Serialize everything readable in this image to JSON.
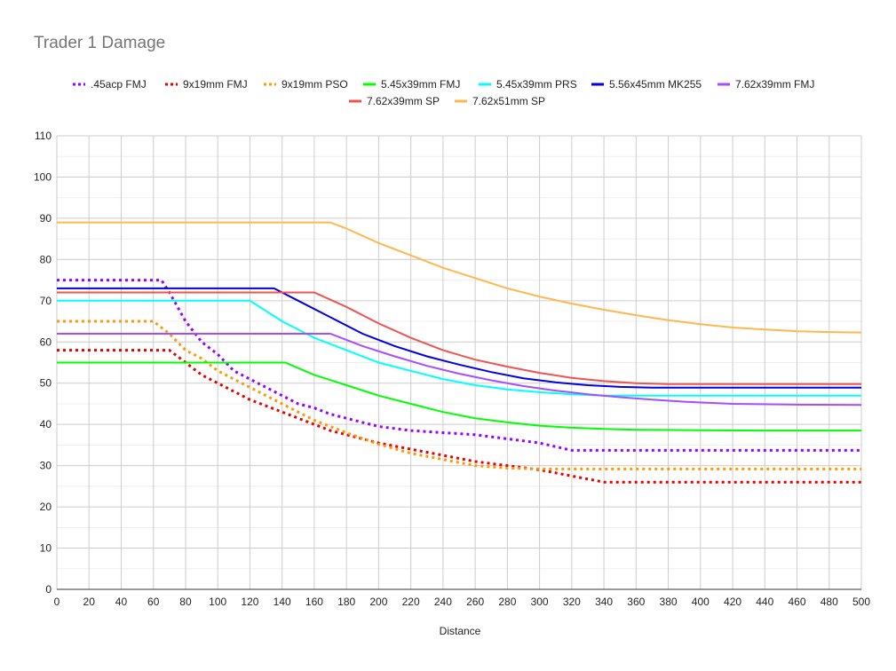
{
  "chart_data": {
    "type": "line",
    "title": "Trader 1 Damage",
    "xlabel": "Distance",
    "ylabel": "",
    "xlim": [
      0,
      500
    ],
    "ylim": [
      0,
      110
    ],
    "xticks": [
      0,
      20,
      40,
      60,
      80,
      100,
      120,
      140,
      160,
      180,
      200,
      220,
      240,
      260,
      280,
      300,
      320,
      340,
      360,
      380,
      400,
      420,
      440,
      460,
      480,
      500
    ],
    "yticks": [
      0,
      10,
      20,
      30,
      40,
      50,
      60,
      70,
      80,
      90,
      100,
      110
    ],
    "minor_y_step": 5,
    "grid": true,
    "legend_position": "top",
    "series": [
      {
        "name": ".45acp FMJ",
        "color": "#9900ff",
        "style": "dotted",
        "points": [
          [
            0,
            75
          ],
          [
            65,
            75
          ],
          [
            70,
            72
          ],
          [
            80,
            65
          ],
          [
            90,
            60
          ],
          [
            100,
            57
          ],
          [
            110,
            53
          ],
          [
            120,
            51
          ],
          [
            130,
            49
          ],
          [
            140,
            47
          ],
          [
            150,
            45
          ],
          [
            160,
            44
          ],
          [
            170,
            42.5
          ],
          [
            180,
            41.5
          ],
          [
            190,
            40.5
          ],
          [
            200,
            39.5
          ],
          [
            220,
            38.5
          ],
          [
            240,
            38
          ],
          [
            260,
            37.5
          ],
          [
            280,
            36.5
          ],
          [
            300,
            35.5
          ],
          [
            320,
            33.7
          ],
          [
            340,
            33.7
          ],
          [
            400,
            33.7
          ],
          [
            500,
            33.7
          ]
        ]
      },
      {
        "name": "9x19mm FMJ",
        "color": "#e60000",
        "style": "dotted",
        "points": [
          [
            0,
            58
          ],
          [
            70,
            58
          ],
          [
            80,
            55
          ],
          [
            90,
            52
          ],
          [
            100,
            50
          ],
          [
            110,
            48
          ],
          [
            120,
            46
          ],
          [
            130,
            44.5
          ],
          [
            140,
            43
          ],
          [
            150,
            41.5
          ],
          [
            160,
            40
          ],
          [
            170,
            38.5
          ],
          [
            180,
            37.5
          ],
          [
            200,
            35.5
          ],
          [
            220,
            34
          ],
          [
            240,
            32.5
          ],
          [
            260,
            31
          ],
          [
            280,
            30
          ],
          [
            300,
            29
          ],
          [
            320,
            27.5
          ],
          [
            340,
            26
          ],
          [
            400,
            26
          ],
          [
            500,
            26
          ]
        ]
      },
      {
        "name": "9x19mm PSO",
        "color": "#ff9900",
        "style": "dotted",
        "points": [
          [
            0,
            65
          ],
          [
            60,
            65
          ],
          [
            70,
            62
          ],
          [
            80,
            58
          ],
          [
            90,
            56
          ],
          [
            100,
            53
          ],
          [
            110,
            51
          ],
          [
            120,
            49
          ],
          [
            130,
            47
          ],
          [
            140,
            45
          ],
          [
            150,
            43
          ],
          [
            160,
            41
          ],
          [
            170,
            39.5
          ],
          [
            180,
            38
          ],
          [
            200,
            35.2
          ],
          [
            220,
            33
          ],
          [
            240,
            31.5
          ],
          [
            260,
            30
          ],
          [
            280,
            29.4
          ],
          [
            300,
            29.2
          ],
          [
            400,
            29.2
          ],
          [
            500,
            29.2
          ]
        ]
      },
      {
        "name": "5.45x39mm FMJ",
        "color": "#00ff00",
        "style": "solid",
        "points": [
          [
            0,
            55
          ],
          [
            142,
            55
          ],
          [
            160,
            52
          ],
          [
            180,
            49.5
          ],
          [
            200,
            47
          ],
          [
            220,
            45
          ],
          [
            240,
            43
          ],
          [
            260,
            41.5
          ],
          [
            280,
            40.5
          ],
          [
            300,
            39.7
          ],
          [
            320,
            39.2
          ],
          [
            340,
            38.9
          ],
          [
            360,
            38.7
          ],
          [
            400,
            38.6
          ],
          [
            440,
            38.5
          ],
          [
            500,
            38.5
          ]
        ]
      },
      {
        "name": "5.45x39mm PRS",
        "color": "#00ffff",
        "style": "solid",
        "points": [
          [
            0,
            70
          ],
          [
            120,
            70
          ],
          [
            140,
            65
          ],
          [
            160,
            61
          ],
          [
            180,
            58
          ],
          [
            200,
            55
          ],
          [
            220,
            53
          ],
          [
            240,
            51
          ],
          [
            260,
            49.5
          ],
          [
            280,
            48.5
          ],
          [
            300,
            47.8
          ],
          [
            320,
            47.3
          ],
          [
            340,
            47
          ],
          [
            400,
            47
          ],
          [
            500,
            47
          ]
        ]
      },
      {
        "name": "5.56x45mm MK255",
        "color": "#0000e6",
        "style": "solid",
        "points": [
          [
            0,
            73
          ],
          [
            135,
            73
          ],
          [
            150,
            70
          ],
          [
            170,
            66
          ],
          [
            190,
            62
          ],
          [
            210,
            59
          ],
          [
            230,
            56.5
          ],
          [
            250,
            54.5
          ],
          [
            270,
            52.7
          ],
          [
            290,
            51.2
          ],
          [
            310,
            50.2
          ],
          [
            330,
            49.5
          ],
          [
            350,
            49.1
          ],
          [
            370,
            48.9
          ],
          [
            400,
            48.9
          ],
          [
            500,
            48.9
          ]
        ]
      },
      {
        "name": "7.62x39mm FMJ",
        "color": "#a64dff",
        "style": "solid",
        "points": [
          [
            0,
            62
          ],
          [
            170,
            62
          ],
          [
            190,
            59
          ],
          [
            210,
            56.5
          ],
          [
            230,
            54.2
          ],
          [
            250,
            52.3
          ],
          [
            270,
            50.7
          ],
          [
            290,
            49.3
          ],
          [
            310,
            48.2
          ],
          [
            330,
            47.3
          ],
          [
            350,
            46.6
          ],
          [
            370,
            46
          ],
          [
            390,
            45.5
          ],
          [
            420,
            45
          ],
          [
            460,
            44.8
          ],
          [
            500,
            44.7
          ]
        ]
      },
      {
        "name": "7.62x39mm SP",
        "color": "#ef5350",
        "style": "solid",
        "points": [
          [
            0,
            72
          ],
          [
            160,
            72
          ],
          [
            180,
            68.5
          ],
          [
            200,
            64.5
          ],
          [
            220,
            61
          ],
          [
            240,
            58
          ],
          [
            260,
            55.7
          ],
          [
            280,
            54
          ],
          [
            300,
            52.5
          ],
          [
            320,
            51.3
          ],
          [
            340,
            50.5
          ],
          [
            360,
            50
          ],
          [
            380,
            49.8
          ],
          [
            400,
            49.8
          ],
          [
            500,
            49.8
          ]
        ]
      },
      {
        "name": "7.62x51mm SP",
        "color": "#ffb74d",
        "style": "solid",
        "points": [
          [
            0,
            89
          ],
          [
            170,
            89
          ],
          [
            180,
            87.5
          ],
          [
            200,
            84
          ],
          [
            220,
            81
          ],
          [
            240,
            78
          ],
          [
            260,
            75.5
          ],
          [
            280,
            73
          ],
          [
            300,
            71
          ],
          [
            320,
            69.3
          ],
          [
            340,
            67.8
          ],
          [
            360,
            66.5
          ],
          [
            380,
            65.3
          ],
          [
            400,
            64.3
          ],
          [
            420,
            63.5
          ],
          [
            440,
            63
          ],
          [
            460,
            62.6
          ],
          [
            480,
            62.4
          ],
          [
            500,
            62.3
          ]
        ]
      }
    ]
  }
}
